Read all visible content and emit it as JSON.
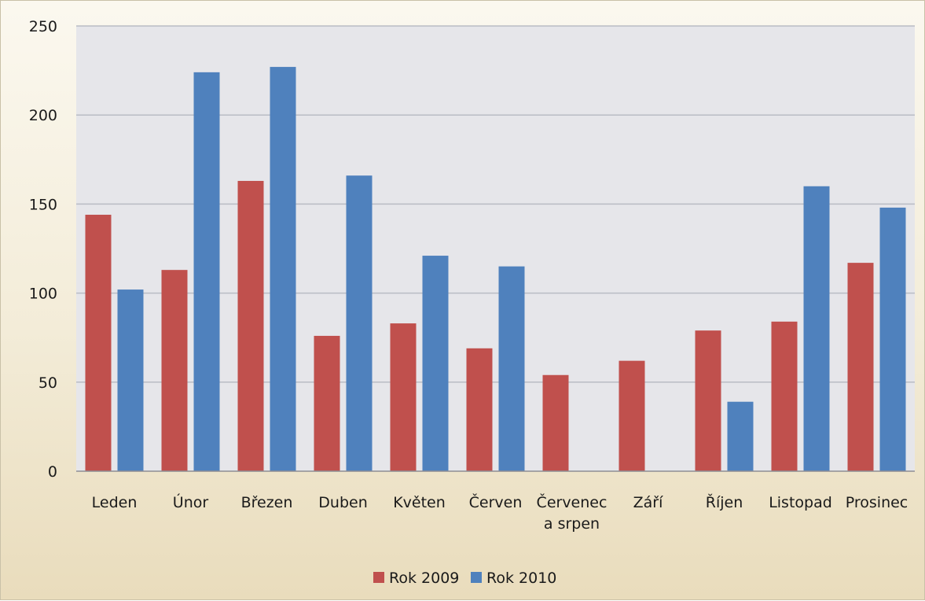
{
  "chart_data": {
    "type": "bar",
    "categories": [
      "Leden",
      "Únor",
      "Březen",
      "Duben",
      "Květen",
      "Červen",
      "Červenec a srpen",
      "Září",
      "Říjen",
      "Listopad",
      "Prosinec"
    ],
    "category_lines": [
      [
        "Leden"
      ],
      [
        "Únor"
      ],
      [
        "Březen"
      ],
      [
        "Duben"
      ],
      [
        "Květen"
      ],
      [
        "Červen"
      ],
      [
        "Červenec",
        "a srpen"
      ],
      [
        "Září"
      ],
      [
        "Říjen"
      ],
      [
        "Listopad"
      ],
      [
        "Prosinec"
      ]
    ],
    "series": [
      {
        "name": "Rok 2009",
        "color": "#c0504d",
        "values": [
          144,
          113,
          163,
          76,
          83,
          69,
          54,
          62,
          79,
          84,
          117
        ]
      },
      {
        "name": "Rok 2010",
        "color": "#4f81bd",
        "values": [
          102,
          224,
          227,
          166,
          121,
          115,
          0,
          0,
          39,
          160,
          148
        ]
      }
    ],
    "ylim": [
      0,
      250
    ],
    "yticks": [
      0,
      50,
      100,
      150,
      200,
      250
    ],
    "grid": true,
    "legend": "bottom",
    "plot_background": "#e6e6ea",
    "grid_color": "#b9bcc4"
  }
}
